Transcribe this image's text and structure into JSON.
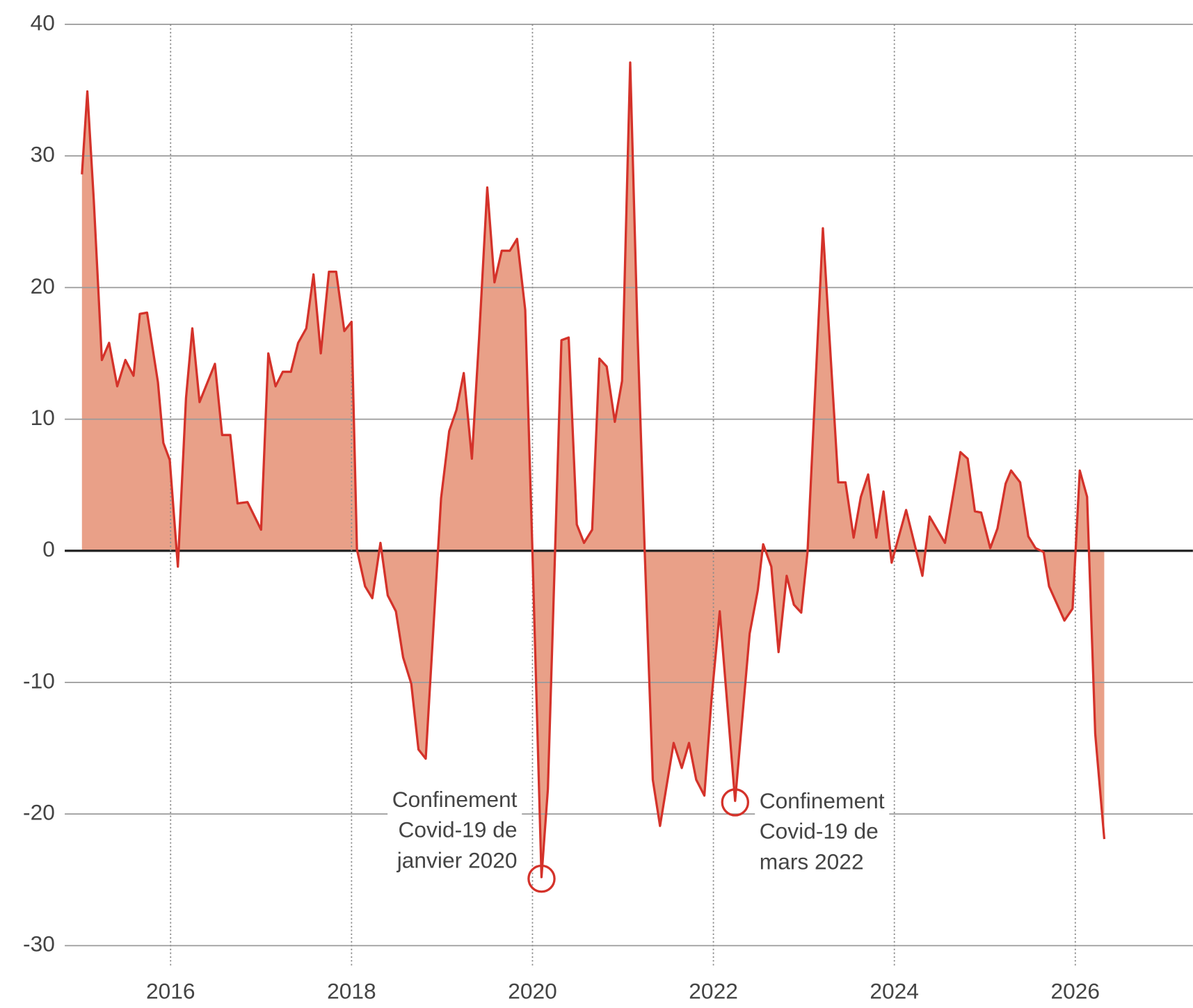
{
  "chart_data": {
    "type": "area",
    "x": [
      2015.02,
      2015.08,
      2015.15,
      2015.24,
      2015.32,
      2015.41,
      2015.5,
      2015.59,
      2015.66,
      2015.74,
      2015.86,
      2015.92,
      2015.99,
      2016.08,
      2016.17,
      2016.24,
      2016.32,
      2016.49,
      2016.57,
      2016.66,
      2016.74,
      2016.85,
      2017.0,
      2017.08,
      2017.16,
      2017.24,
      2017.33,
      2017.41,
      2017.5,
      2017.58,
      2017.66,
      2017.75,
      2017.83,
      2017.92,
      2018.0,
      2018.06,
      2018.15,
      2018.23,
      2018.32,
      2018.4,
      2018.49,
      2018.57,
      2018.66,
      2018.74,
      2018.82,
      2018.99,
      2019.08,
      2019.16,
      2019.24,
      2019.33,
      2019.41,
      2019.5,
      2019.58,
      2019.66,
      2019.75,
      2019.83,
      2019.92,
      2020.0,
      2020.1,
      2020.17,
      2020.32,
      2020.4,
      2020.49,
      2020.57,
      2020.66,
      2020.74,
      2020.82,
      2020.91,
      2020.99,
      2021.08,
      2021.16,
      2021.24,
      2021.33,
      2021.41,
      2021.56,
      2021.65,
      2021.73,
      2021.81,
      2021.9,
      2021.98,
      2022.07,
      2022.24,
      2022.4,
      2022.49,
      2022.55,
      2022.64,
      2022.72,
      2022.81,
      2022.89,
      2022.97,
      2023.04,
      2023.21,
      2023.38,
      2023.46,
      2023.55,
      2023.63,
      2023.71,
      2023.8,
      2023.88,
      2023.97,
      2024.13,
      2024.31,
      2024.39,
      2024.56,
      2024.73,
      2024.81,
      2024.89,
      2024.96,
      2025.06,
      2025.14,
      2025.23,
      2025.29,
      2025.39,
      2025.48,
      2025.56,
      2025.65,
      2025.71,
      2025.88,
      2025.97,
      2026.05,
      2026.13,
      2026.22,
      2026.32
    ],
    "values": [
      28.6,
      34.9,
      26.7,
      14.5,
      15.8,
      12.5,
      14.5,
      13.3,
      18.0,
      18.1,
      12.8,
      8.2,
      6.9,
      -1.2,
      11.6,
      16.9,
      11.3,
      14.2,
      8.8,
      8.8,
      3.6,
      3.7,
      1.6,
      15.0,
      12.5,
      13.6,
      13.6,
      15.8,
      16.9,
      21.0,
      15.0,
      21.2,
      21.2,
      16.7,
      17.4,
      0.1,
      -2.7,
      -3.6,
      0.6,
      -3.4,
      -4.6,
      -8.1,
      -10.1,
      -15.1,
      -15.8,
      4.0,
      9.1,
      10.7,
      13.5,
      7.0,
      16.2,
      27.6,
      20.4,
      22.8,
      22.8,
      23.7,
      18.3,
      -0.1,
      -24.8,
      -18.1,
      16.0,
      16.2,
      2.0,
      0.6,
      1.6,
      14.6,
      14.0,
      9.8,
      12.9,
      37.1,
      16.8,
      0.1,
      -17.4,
      -20.9,
      -14.6,
      -16.5,
      -14.6,
      -17.4,
      -18.6,
      -11.2,
      -4.6,
      -19.0,
      -6.3,
      -3.0,
      0.5,
      -1.2,
      -7.7,
      -1.9,
      -4.1,
      -4.7,
      -0.1,
      24.5,
      5.2,
      5.2,
      1.0,
      4.1,
      5.8,
      1.0,
      4.5,
      -0.9,
      3.1,
      -1.9,
      2.6,
      0.6,
      7.5,
      7.0,
      3.0,
      2.9,
      0.2,
      1.7,
      5.1,
      6.1,
      5.2,
      1.1,
      0.2,
      -0.1,
      -2.7,
      -5.3,
      -4.4,
      6.1,
      4.1,
      -13.9,
      -21.9
    ],
    "color": "#d4322a",
    "fill_color": "#e9a088",
    "xlim": [
      2014.83,
      2027.3
    ],
    "xticks": [
      2016,
      2018,
      2020,
      2022,
      2024,
      2026
    ],
    "ylim": [
      -30,
      40
    ],
    "yticks": [
      -30,
      -20,
      -10,
      0,
      10,
      20,
      30,
      40
    ],
    "grid": true,
    "annotations": [
      {
        "lines": [
          "Confinement",
          "Covid-19 de",
          "janvier 2020"
        ],
        "x": 2020.1,
        "y": -24.8
      },
      {
        "lines": [
          "Confinement",
          "Covid-19 de",
          "mars 2022"
        ],
        "x": 2022.24,
        "y": -19.0
      }
    ]
  }
}
